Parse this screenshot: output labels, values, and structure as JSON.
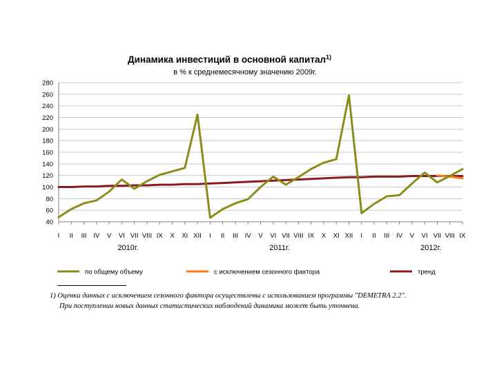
{
  "chart_data": {
    "type": "line",
    "title": "Динамика инвестиций в основной капитал",
    "title_sup": "1)",
    "subtitle": "в % к среднемесячному значению 2009г.",
    "ylim": [
      40,
      280
    ],
    "yticks": [
      40,
      60,
      80,
      100,
      120,
      140,
      160,
      180,
      200,
      220,
      240,
      260,
      280
    ],
    "grid": "horizontal",
    "categories": [
      "I",
      "II",
      "III",
      "IV",
      "V",
      "VI",
      "VII",
      "VIII",
      "IX",
      "X",
      "XI",
      "XII",
      "I",
      "II",
      "III",
      "IV",
      "V",
      "VI",
      "VII",
      "VIII",
      "IX",
      "X",
      "XI",
      "XII",
      "I",
      "II",
      "III",
      "IV",
      "V",
      "VI",
      "VII",
      "VIII",
      "IX"
    ],
    "year_labels": [
      {
        "label": "2010г.",
        "index": 5.5
      },
      {
        "label": "2011г.",
        "index": 17.5
      },
      {
        "label": "2012г.",
        "index": 29.5
      }
    ],
    "series": [
      {
        "name": "по общему объему",
        "color": "#8b8b1a",
        "values": [
          48,
          62,
          72,
          77,
          92,
          113,
          97,
          110,
          121,
          127,
          133,
          225,
          47,
          62,
          72,
          79,
          100,
          118,
          104,
          117,
          131,
          142,
          148,
          258,
          55,
          71,
          84,
          86,
          106,
          125,
          108,
          119,
          131
        ]
      },
      {
        "name": "с исключением сезонного фактора",
        "color": "#ff7a1a",
        "values": [
          null,
          null,
          null,
          null,
          null,
          null,
          null,
          null,
          null,
          null,
          null,
          null,
          null,
          null,
          null,
          null,
          null,
          null,
          null,
          null,
          null,
          null,
          null,
          null,
          null,
          null,
          null,
          null,
          null,
          null,
          120,
          118,
          115
        ]
      },
      {
        "name": "тренд",
        "color": "#8b1a1a",
        "values": [
          100,
          100,
          101,
          101,
          102,
          102,
          103,
          103,
          104,
          104,
          105,
          105,
          106,
          107,
          108,
          109,
          110,
          111,
          112,
          113,
          114,
          115,
          116,
          117,
          117,
          118,
          118,
          118,
          119,
          119,
          119,
          119,
          119
        ]
      }
    ],
    "legend": "bottom"
  },
  "footnote": {
    "line1": "1) Оценки данных с исключением сезонного фактора осуществлены с использованием программы \"DEMETRA 2.2\".",
    "line2": "При поступлении новых данных статистических наблюдений динамика может быть уточнена."
  }
}
